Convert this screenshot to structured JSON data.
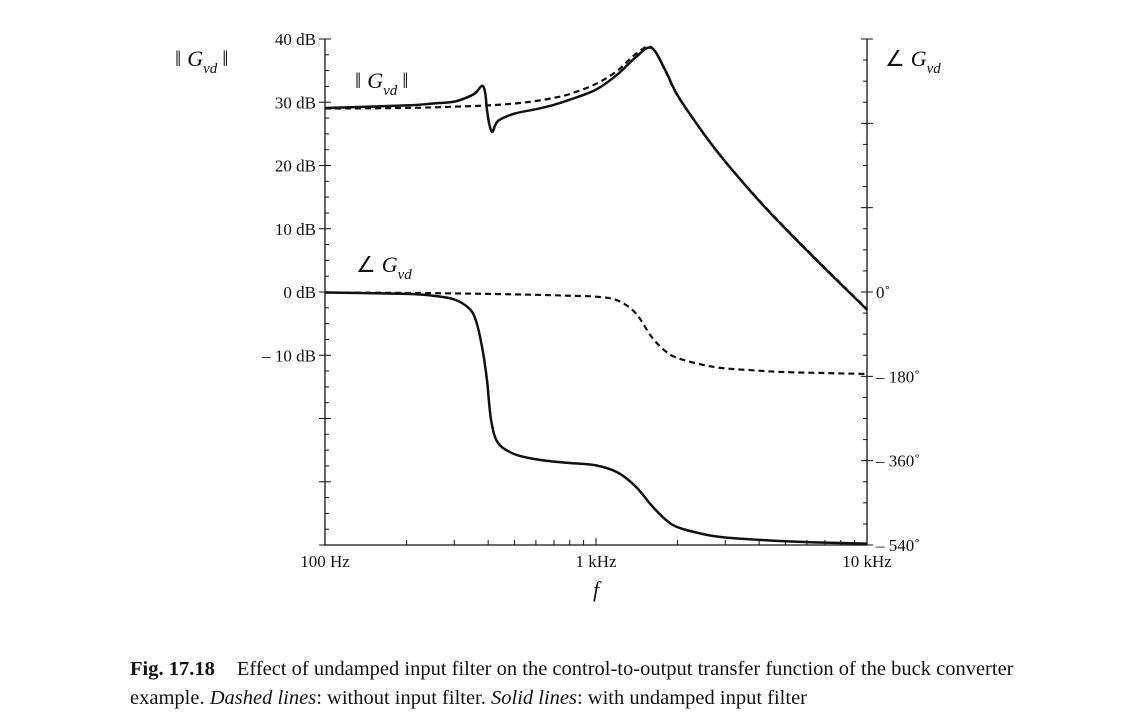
{
  "chart_data": {
    "type": "line",
    "title": "",
    "xlabel": "f",
    "x_scale": "log",
    "xlim": [
      100,
      10000
    ],
    "x_ticks": [
      100,
      1000,
      10000
    ],
    "x_tick_labels": [
      "100 Hz",
      "1 kHz",
      "10 kHz"
    ],
    "y_left": {
      "title": {
        "pre": "‖",
        "var": "G",
        "sub": "vd",
        "post": "‖"
      },
      "range": [
        -40,
        40
      ],
      "ticks": [
        40,
        30,
        20,
        10,
        0,
        -10
      ],
      "tick_labels": [
        "40 dB",
        "30 dB",
        "20 dB",
        "10 dB",
        "0 dB",
        "– 10 dB"
      ]
    },
    "y_right": {
      "title": {
        "pre": "∠",
        "var": "G",
        "sub": "vd"
      },
      "range": [
        -540,
        540
      ],
      "ticks": [
        0,
        -180,
        -360,
        -540
      ],
      "tick_labels": [
        "0˚",
        "– 180˚",
        "– 360˚",
        "– 540˚"
      ]
    },
    "curve_labels": {
      "magnitude": {
        "pre": "‖",
        "var": "G",
        "sub": "vd",
        "post": "‖"
      },
      "phase": {
        "pre": "∠",
        "var": "G",
        "sub": "vd"
      }
    },
    "grid": false,
    "series": [
      {
        "style": "dashed",
        "axis": "left",
        "quantity": "magnitude_dB",
        "x": [
          100,
          200,
          300,
          400,
          500,
          600,
          700,
          800,
          1000,
          1200,
          1400,
          1600,
          1800,
          2000,
          2500,
          3000,
          4000,
          5000,
          7000,
          10000
        ],
        "y": [
          29.0,
          29.1,
          29.3,
          29.5,
          29.8,
          30.2,
          30.7,
          31.3,
          32.9,
          35.0,
          37.6,
          38.7,
          35.0,
          31.0,
          25.0,
          20.6,
          14.5,
          10.1,
          3.8,
          -2.7
        ]
      },
      {
        "style": "solid",
        "axis": "left",
        "quantity": "magnitude_dB",
        "x": [
          100,
          200,
          250,
          300,
          340,
          360,
          380,
          390,
          396,
          404,
          414,
          425,
          440,
          500,
          600,
          700,
          800,
          1000,
          1200,
          1400,
          1600,
          1800,
          2000,
          2500,
          3000,
          4000,
          5000,
          7000,
          10000
        ],
        "y": [
          29.1,
          29.5,
          29.8,
          30.1,
          30.9,
          31.5,
          32.6,
          31.5,
          28.8,
          26.5,
          25.3,
          26.4,
          27.2,
          28.2,
          28.9,
          29.6,
          30.4,
          32.0,
          34.4,
          37.1,
          38.6,
          35.1,
          31.1,
          25.0,
          20.6,
          14.4,
          10.0,
          3.7,
          -2.8
        ]
      },
      {
        "style": "dashed",
        "axis": "right",
        "quantity": "phase_deg",
        "x": [
          100,
          200,
          300,
          400,
          500,
          600,
          700,
          800,
          1000,
          1200,
          1400,
          1600,
          1800,
          2000,
          2500,
          3000,
          4000,
          5000,
          7000,
          10000
        ],
        "y": [
          -1,
          -2,
          -3,
          -4,
          -5,
          -6,
          -7,
          -8,
          -10,
          -18,
          -45,
          -95,
          -126,
          -141,
          -156,
          -163,
          -168,
          -171,
          -173,
          -175
        ]
      },
      {
        "style": "solid",
        "axis": "right",
        "quantity": "phase_deg",
        "x": [
          100,
          200,
          250,
          300,
          340,
          360,
          380,
          396,
          410,
          435,
          500,
          600,
          700,
          800,
          1000,
          1200,
          1400,
          1600,
          1800,
          2000,
          2500,
          3000,
          4000,
          5000,
          7000,
          10000
        ],
        "y": [
          -1,
          -4,
          -8,
          -16,
          -35,
          -60,
          -118,
          -188,
          -273,
          -322,
          -346,
          -357,
          -362,
          -365,
          -370,
          -385,
          -415,
          -455,
          -485,
          -502,
          -517,
          -524,
          -529,
          -532,
          -535,
          -537
        ]
      }
    ]
  },
  "caption": {
    "figure_label": "Fig. 17.18",
    "line1": "Effect of undamped input filter on the control-to-output transfer function of the buck converter",
    "line2_start": "example. ",
    "dashed_term": "Dashed lines",
    "dashed_text": ": without input filter. ",
    "solid_term": "Solid lines",
    "solid_text": ": with undamped input filter"
  }
}
